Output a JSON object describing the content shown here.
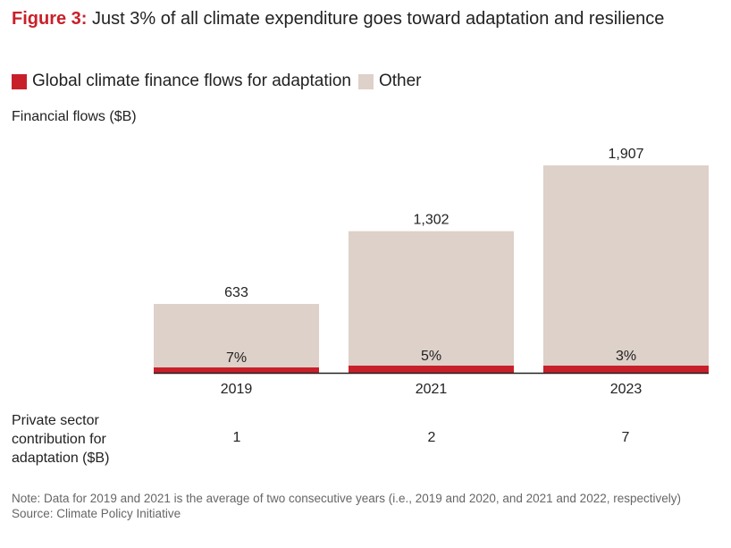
{
  "title": {
    "prefix": "Figure 3:",
    "text": " Just 3% of all climate expenditure goes toward adaptation and resilience"
  },
  "colors": {
    "adaptation": "#c8202a",
    "other": "#ded1c9",
    "accent": "#c8202a"
  },
  "chart_data": {
    "type": "bar",
    "stacked": true,
    "categories": [
      "2019",
      "2021",
      "2023"
    ],
    "ylabel": "Financial flows ($B)",
    "totals": [
      633,
      1302,
      1907
    ],
    "total_labels": [
      "633",
      "1,302",
      "1,907"
    ],
    "share_labels": [
      "7%",
      "5%",
      "3%"
    ],
    "series": [
      {
        "name": "Global climate finance flows for adaptation",
        "values": [
          44,
          65,
          57
        ]
      },
      {
        "name": "Other",
        "values": [
          589,
          1237,
          1850
        ]
      }
    ],
    "legend": "top-left",
    "grid": false
  },
  "private": {
    "label": "Private sector contribution for adaptation ($B)",
    "values": [
      "1",
      "2",
      "7"
    ]
  },
  "note": "Note: Data for 2019 and 2021 is the average of two consecutive years (i.e., 2019 and 2020, and 2021 and 2022, respectively)",
  "source": "Source: Climate Policy Initiative"
}
